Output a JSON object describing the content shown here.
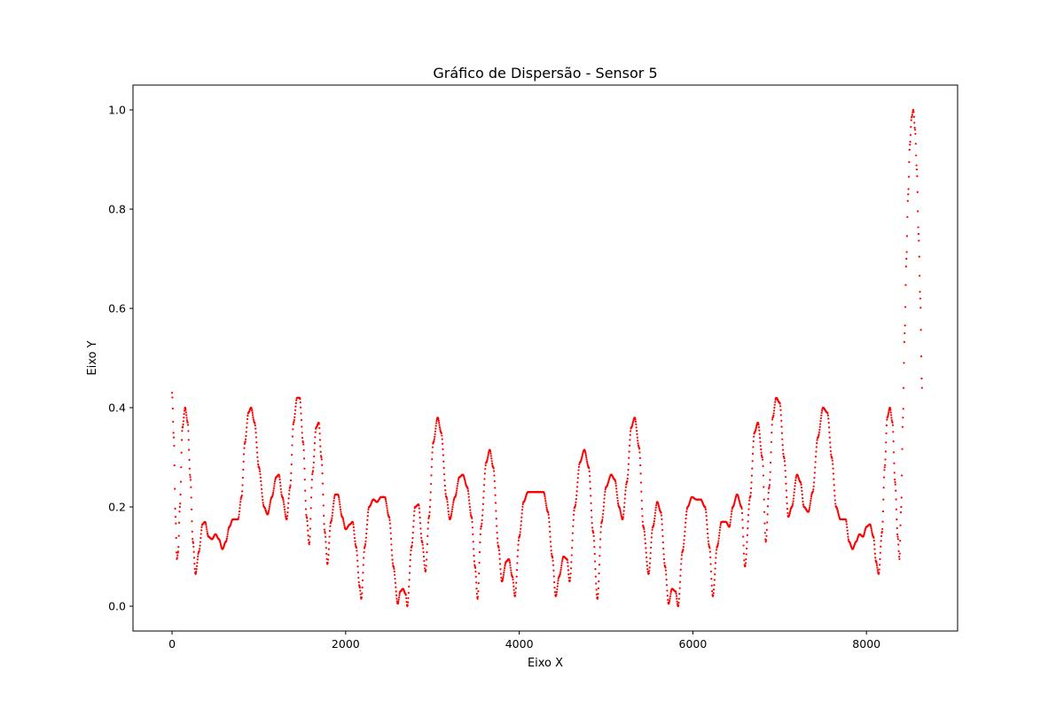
{
  "chart_data": {
    "type": "scatter",
    "title": "Gráfico de Dispersão - Sensor 5",
    "xlabel": "Eixo X",
    "ylabel": "Eixo Y",
    "xlim": [
      -450,
      9050
    ],
    "ylim": [
      -0.05,
      1.05
    ],
    "x_ticks": [
      0,
      2000,
      4000,
      6000,
      8000
    ],
    "x_tick_labels": [
      "0",
      "2000",
      "4000",
      "6000",
      "8000"
    ],
    "y_ticks": [
      0.0,
      0.2,
      0.4,
      0.6,
      0.8,
      1.0
    ],
    "y_tick_labels": [
      "0.0",
      "0.2",
      "0.4",
      "0.6",
      "0.8",
      "1.0"
    ],
    "grid": false,
    "series": [
      {
        "color": "#ff0000",
        "marker": "dot",
        "points": [
          [
            0,
            0.43
          ],
          [
            20,
            0.34
          ],
          [
            40,
            0.18
          ],
          [
            55,
            0.095
          ],
          [
            70,
            0.11
          ],
          [
            90,
            0.2
          ],
          [
            120,
            0.36
          ],
          [
            150,
            0.4
          ],
          [
            180,
            0.37
          ],
          [
            210,
            0.26
          ],
          [
            240,
            0.13
          ],
          [
            270,
            0.065
          ],
          [
            310,
            0.11
          ],
          [
            350,
            0.165
          ],
          [
            380,
            0.17
          ],
          [
            420,
            0.14
          ],
          [
            460,
            0.135
          ],
          [
            500,
            0.145
          ],
          [
            540,
            0.135
          ],
          [
            580,
            0.115
          ],
          [
            620,
            0.13
          ],
          [
            660,
            0.16
          ],
          [
            700,
            0.175
          ],
          [
            760,
            0.175
          ],
          [
            800,
            0.22
          ],
          [
            840,
            0.33
          ],
          [
            880,
            0.39
          ],
          [
            910,
            0.4
          ],
          [
            950,
            0.37
          ],
          [
            1000,
            0.28
          ],
          [
            1060,
            0.2
          ],
          [
            1100,
            0.185
          ],
          [
            1150,
            0.22
          ],
          [
            1200,
            0.26
          ],
          [
            1230,
            0.265
          ],
          [
            1270,
            0.22
          ],
          [
            1320,
            0.175
          ],
          [
            1360,
            0.24
          ],
          [
            1400,
            0.37
          ],
          [
            1440,
            0.42
          ],
          [
            1470,
            0.42
          ],
          [
            1510,
            0.33
          ],
          [
            1550,
            0.18
          ],
          [
            1580,
            0.125
          ],
          [
            1620,
            0.27
          ],
          [
            1660,
            0.36
          ],
          [
            1690,
            0.37
          ],
          [
            1720,
            0.3
          ],
          [
            1760,
            0.15
          ],
          [
            1790,
            0.085
          ],
          [
            1830,
            0.17
          ],
          [
            1880,
            0.225
          ],
          [
            1910,
            0.225
          ],
          [
            1960,
            0.18
          ],
          [
            2000,
            0.155
          ],
          [
            2050,
            0.165
          ],
          [
            2080,
            0.17
          ],
          [
            2120,
            0.12
          ],
          [
            2160,
            0.04
          ],
          [
            2180,
            0.015
          ],
          [
            2220,
            0.12
          ],
          [
            2270,
            0.2
          ],
          [
            2320,
            0.215
          ],
          [
            2360,
            0.21
          ],
          [
            2410,
            0.22
          ],
          [
            2450,
            0.22
          ],
          [
            2500,
            0.18
          ],
          [
            2550,
            0.08
          ],
          [
            2600,
            0.005
          ],
          [
            2630,
            0.03
          ],
          [
            2660,
            0.035
          ],
          [
            2690,
            0.025
          ],
          [
            2710,
            0.0
          ],
          [
            2760,
            0.12
          ],
          [
            2800,
            0.2
          ],
          [
            2840,
            0.205
          ],
          [
            2880,
            0.13
          ],
          [
            2920,
            0.07
          ],
          [
            2960,
            0.18
          ],
          [
            3010,
            0.33
          ],
          [
            3060,
            0.38
          ],
          [
            3100,
            0.35
          ],
          [
            3160,
            0.22
          ],
          [
            3200,
            0.175
          ],
          [
            3260,
            0.22
          ],
          [
            3310,
            0.26
          ],
          [
            3350,
            0.265
          ],
          [
            3400,
            0.24
          ],
          [
            3450,
            0.18
          ],
          [
            3490,
            0.08
          ],
          [
            3520,
            0.015
          ],
          [
            3560,
            0.16
          ],
          [
            3620,
            0.29
          ],
          [
            3660,
            0.315
          ],
          [
            3700,
            0.28
          ],
          [
            3760,
            0.12
          ],
          [
            3800,
            0.05
          ],
          [
            3850,
            0.09
          ],
          [
            3880,
            0.095
          ],
          [
            3920,
            0.06
          ],
          [
            3950,
            0.02
          ],
          [
            4000,
            0.14
          ],
          [
            4050,
            0.21
          ],
          [
            4100,
            0.23
          ],
          [
            4200,
            0.23
          ],
          [
            4280,
            0.23
          ],
          [
            4330,
            0.19
          ],
          [
            4380,
            0.1
          ],
          [
            4420,
            0.02
          ],
          [
            4460,
            0.06
          ],
          [
            4510,
            0.1
          ],
          [
            4550,
            0.095
          ],
          [
            4580,
            0.05
          ],
          [
            4640,
            0.2
          ],
          [
            4700,
            0.29
          ],
          [
            4750,
            0.315
          ],
          [
            4800,
            0.28
          ],
          [
            4850,
            0.15
          ],
          [
            4900,
            0.015
          ],
          [
            4950,
            0.17
          ],
          [
            5000,
            0.24
          ],
          [
            5060,
            0.265
          ],
          [
            5100,
            0.255
          ],
          [
            5150,
            0.2
          ],
          [
            5190,
            0.175
          ],
          [
            5240,
            0.25
          ],
          [
            5290,
            0.36
          ],
          [
            5330,
            0.38
          ],
          [
            5380,
            0.32
          ],
          [
            5430,
            0.16
          ],
          [
            5490,
            0.065
          ],
          [
            5540,
            0.16
          ],
          [
            5590,
            0.21
          ],
          [
            5630,
            0.19
          ],
          [
            5680,
            0.08
          ],
          [
            5720,
            0.005
          ],
          [
            5760,
            0.035
          ],
          [
            5800,
            0.03
          ],
          [
            5830,
            0.0
          ],
          [
            5880,
            0.11
          ],
          [
            5940,
            0.2
          ],
          [
            5990,
            0.22
          ],
          [
            6040,
            0.215
          ],
          [
            6090,
            0.215
          ],
          [
            6140,
            0.2
          ],
          [
            6190,
            0.12
          ],
          [
            6230,
            0.02
          ],
          [
            6280,
            0.12
          ],
          [
            6330,
            0.17
          ],
          [
            6380,
            0.17
          ],
          [
            6420,
            0.16
          ],
          [
            6460,
            0.2
          ],
          [
            6510,
            0.225
          ],
          [
            6560,
            0.2
          ],
          [
            6600,
            0.08
          ],
          [
            6660,
            0.22
          ],
          [
            6710,
            0.35
          ],
          [
            6750,
            0.37
          ],
          [
            6800,
            0.3
          ],
          [
            6840,
            0.13
          ],
          [
            6880,
            0.24
          ],
          [
            6920,
            0.38
          ],
          [
            6960,
            0.42
          ],
          [
            7000,
            0.41
          ],
          [
            7050,
            0.3
          ],
          [
            7100,
            0.18
          ],
          [
            7140,
            0.2
          ],
          [
            7200,
            0.265
          ],
          [
            7240,
            0.25
          ],
          [
            7280,
            0.2
          ],
          [
            7330,
            0.19
          ],
          [
            7380,
            0.23
          ],
          [
            7440,
            0.34
          ],
          [
            7500,
            0.4
          ],
          [
            7550,
            0.39
          ],
          [
            7600,
            0.3
          ],
          [
            7650,
            0.2
          ],
          [
            7700,
            0.175
          ],
          [
            7760,
            0.175
          ],
          [
            7800,
            0.13
          ],
          [
            7840,
            0.115
          ],
          [
            7880,
            0.13
          ],
          [
            7920,
            0.145
          ],
          [
            7960,
            0.14
          ],
          [
            8000,
            0.16
          ],
          [
            8040,
            0.165
          ],
          [
            8080,
            0.14
          ],
          [
            8110,
            0.09
          ],
          [
            8140,
            0.065
          ],
          [
            8180,
            0.15
          ],
          [
            8210,
            0.28
          ],
          [
            8240,
            0.38
          ],
          [
            8270,
            0.4
          ],
          [
            8300,
            0.37
          ],
          [
            8330,
            0.25
          ],
          [
            8360,
            0.14
          ],
          [
            8380,
            0.095
          ],
          [
            8400,
            0.2
          ],
          [
            8420,
            0.38
          ],
          [
            8440,
            0.55
          ],
          [
            8460,
            0.7
          ],
          [
            8480,
            0.83
          ],
          [
            8500,
            0.93
          ],
          [
            8520,
            0.985
          ],
          [
            8540,
            1.0
          ],
          [
            8560,
            0.96
          ],
          [
            8580,
            0.88
          ],
          [
            8600,
            0.75
          ],
          [
            8620,
            0.62
          ],
          [
            8640,
            0.44
          ]
        ]
      }
    ]
  }
}
